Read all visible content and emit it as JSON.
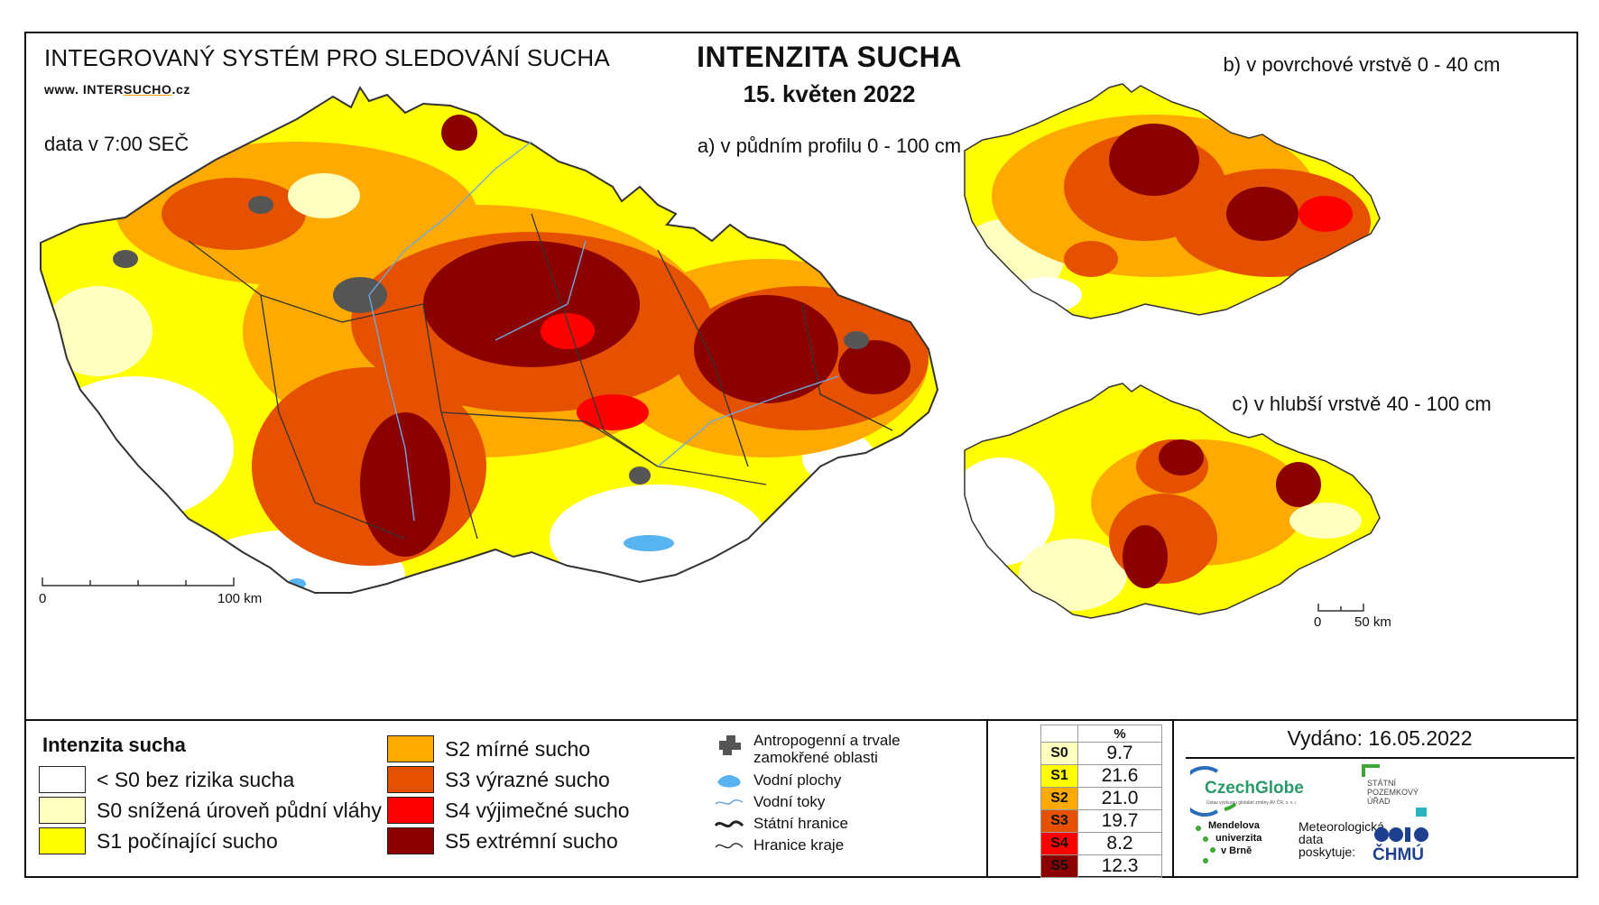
{
  "header": {
    "system": "INTEGROVANÝ SYSTÉM PRO SLEDOVÁNÍ SUCHA",
    "url_prefix": "www. INTER",
    "url_underline": "SUCHO",
    "url_suffix": ".cz",
    "data_time": "data v 7:00 SEČ",
    "title": "INTENZITA SUCHA",
    "date": "15. květen 2022"
  },
  "maps": {
    "a_label": "a) v půdním profilu 0 - 100 cm",
    "b_label": "b) v povrchové vrstvě 0 - 40 cm",
    "c_label": "c) v hlubší vrstvě 40 - 100 cm",
    "scale_main_start": "0",
    "scale_main_end": "100 km",
    "scale_small_start": "0",
    "scale_small_end": "50 km"
  },
  "legend": {
    "title": "Intenzita sucha",
    "classes": [
      {
        "label": "< S0 bez rizika sucha",
        "color": "#ffffff"
      },
      {
        "label": "S0 snížená úroveň půdní vláhy",
        "color": "#ffffc0"
      },
      {
        "label": "S1 počínající sucho",
        "color": "#ffff00"
      },
      {
        "label": "S2 mírné sucho",
        "color": "#ffaa00"
      },
      {
        "label": "S3 výrazné sucho",
        "color": "#e65100"
      },
      {
        "label": "S4 výjimečné sucho",
        "color": "#ff0000"
      },
      {
        "label": "S5 extrémní sucho",
        "color": "#8b0000"
      }
    ],
    "symbols": {
      "anthropogenic": "Antropogenní a trvale zamokřené oblasti",
      "water_bodies": "Vodní plochy",
      "rivers": "Vodní toky",
      "state_border": "Státní hranice",
      "region_border": "Hranice kraje"
    }
  },
  "stats": {
    "header": "%",
    "rows": [
      {
        "code": "S0",
        "value": "9.7",
        "color": "#ffffc0"
      },
      {
        "code": "S1",
        "value": "21.6",
        "color": "#ffff00"
      },
      {
        "code": "S2",
        "value": "21.0",
        "color": "#ffaa00"
      },
      {
        "code": "S3",
        "value": "19.7",
        "color": "#e65100"
      },
      {
        "code": "S4",
        "value": "8.2",
        "color": "#ff0000"
      },
      {
        "code": "S5",
        "value": "12.3",
        "color": "#8b0000"
      }
    ]
  },
  "footer": {
    "issued": "Vydáno: 16.05.2022",
    "czechglobe": "CzechGlobe",
    "czechglobe_sub": "Ústav výzkumu globální změny AV ČR, v. v. i.",
    "spu": "STÁTNÍ POZEMKOVÝ ÚŘAD",
    "mendel_1": "Mendelova",
    "mendel_2": "univerzita",
    "mendel_3": "v Brně",
    "meteo_1": "Meteorologická",
    "meteo_2": "data",
    "meteo_3": "poskytuje:",
    "chmu": "ČHMÚ"
  }
}
